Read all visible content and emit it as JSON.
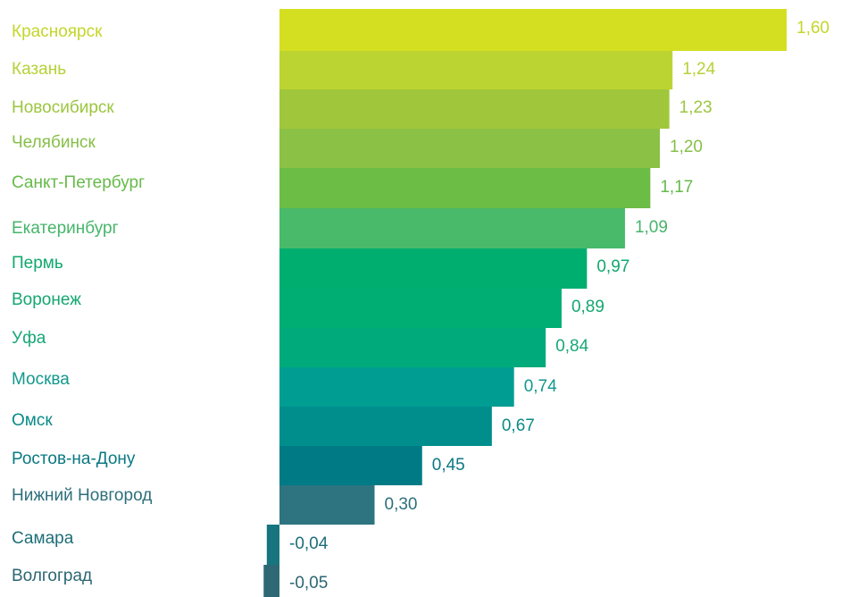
{
  "chart_data": {
    "type": "bar",
    "orientation": "horizontal",
    "decimal_separator": ",",
    "categories": [
      "Красноярск",
      "Казань",
      "Новосибирск",
      "Челябинск",
      "Санкт-Петербург",
      "Екатеринбург",
      "Пермь",
      "Воронеж",
      "Уфа",
      "Москва",
      "Омск",
      "Ростов-на-Дону",
      "Нижний Новгород",
      "Самара",
      "Волгоград"
    ],
    "values": [
      1.6,
      1.24,
      1.23,
      1.2,
      1.17,
      1.09,
      0.97,
      0.89,
      0.84,
      0.74,
      0.67,
      0.45,
      0.3,
      -0.04,
      -0.05
    ],
    "value_labels": [
      "1,60",
      "1,24",
      "1,23",
      "1,20",
      "1,17",
      "1,09",
      "0,97",
      "0,89",
      "0,84",
      "0,74",
      "0,67",
      "0,45",
      "0,30",
      "-0,04",
      "-0,05"
    ],
    "bar_colors": [
      "#d4df22",
      "#bcd431",
      "#a0c73b",
      "#8bc144",
      "#6cbd45",
      "#49b96a",
      "#00ae70",
      "#00ad73",
      "#00aa7a",
      "#009d93",
      "#008e8d",
      "#007b85",
      "#2e7480",
      "#17757f",
      "#2e6874"
    ],
    "label_colors": [
      "#c4d62a",
      "#b6d136",
      "#9cc63f",
      "#86bf48",
      "#66ba4a",
      "#46b56a",
      "#10a86e",
      "#14a771",
      "#18a777",
      "#12988d",
      "#0a8a88",
      "#0b7882",
      "#2e6f7c",
      "#1d6e78",
      "#2b6672"
    ],
    "xlim": [
      -0.05,
      1.6
    ],
    "grid": false,
    "title": "",
    "xlabel": "",
    "ylabel": ""
  }
}
